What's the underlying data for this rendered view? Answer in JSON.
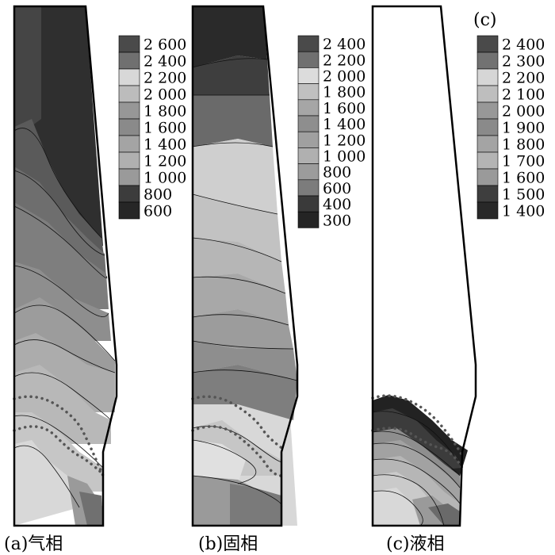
{
  "figure": {
    "panels": [
      {
        "id": "a",
        "caption": "(a)气相",
        "panel_letter": "",
        "legend": [
          "2 600",
          "2 400",
          "2 200",
          "2 000",
          "1 800",
          "1 600",
          "1 400",
          "1 200",
          "1 000",
          "800",
          "600"
        ],
        "legend_colors": [
          "#4a4a4a",
          "#707070",
          "#d8d8d8",
          "#bcbcbc",
          "#979797",
          "#8a8a8a",
          "#a4a4a4",
          "#b0b0b0",
          "#9a9a9a",
          "#3c3c3c",
          "#262626"
        ]
      },
      {
        "id": "b",
        "caption": "(b)固相",
        "panel_letter": "",
        "legend": [
          "2 400",
          "2 200",
          "2 000",
          "1 800",
          "1 600",
          "1 400",
          "1 200",
          "1 000",
          "800",
          "600",
          "400",
          "300"
        ],
        "legend_colors": [
          "#4a4a4a",
          "#707070",
          "#dcdcdc",
          "#c0c0c0",
          "#a6a6a6",
          "#8e8e8e",
          "#a0a0a0",
          "#b0b0b0",
          "#9c9c9c",
          "#7c7c7c",
          "#3a3a3a",
          "#242424"
        ]
      },
      {
        "id": "c",
        "caption": "(c)液相",
        "panel_letter": "(c)",
        "legend": [
          "2 400",
          "2 300",
          "2 200",
          "2 100",
          "2 000",
          "1 900",
          "1 800",
          "1 700",
          "1 600",
          "1 500",
          "1 400"
        ],
        "legend_colors": [
          "#4a4a4a",
          "#727272",
          "#d6d6d6",
          "#bebebe",
          "#989898",
          "#8a8a8a",
          "#a4a4a4",
          "#b4b4b4",
          "#9a9a9a",
          "#3e3e3e",
          "#282828"
        ]
      }
    ]
  }
}
